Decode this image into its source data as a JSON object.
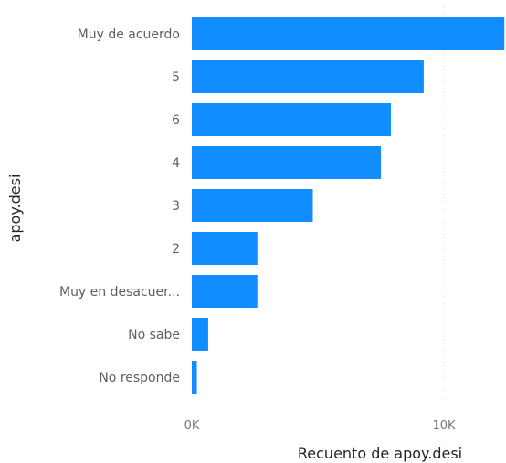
{
  "chart_data": {
    "type": "bar",
    "orientation": "horizontal",
    "categories": [
      "Muy de acuerdo",
      "5",
      "6",
      "4",
      "3",
      "2",
      "Muy en desacuer...",
      "No sabe",
      "No responde"
    ],
    "values": [
      12400,
      9200,
      7900,
      7500,
      4800,
      2600,
      2600,
      650,
      200
    ],
    "xlabel": "Recuento de apoy.desi",
    "ylabel": "apoy.desi",
    "xticks": [
      {
        "value": 0,
        "label": "0K"
      },
      {
        "value": 10000,
        "label": "10K"
      }
    ],
    "xlim": [
      0,
      12400
    ],
    "grid": "vertical-dotted",
    "bar_color": "#118DFF"
  }
}
